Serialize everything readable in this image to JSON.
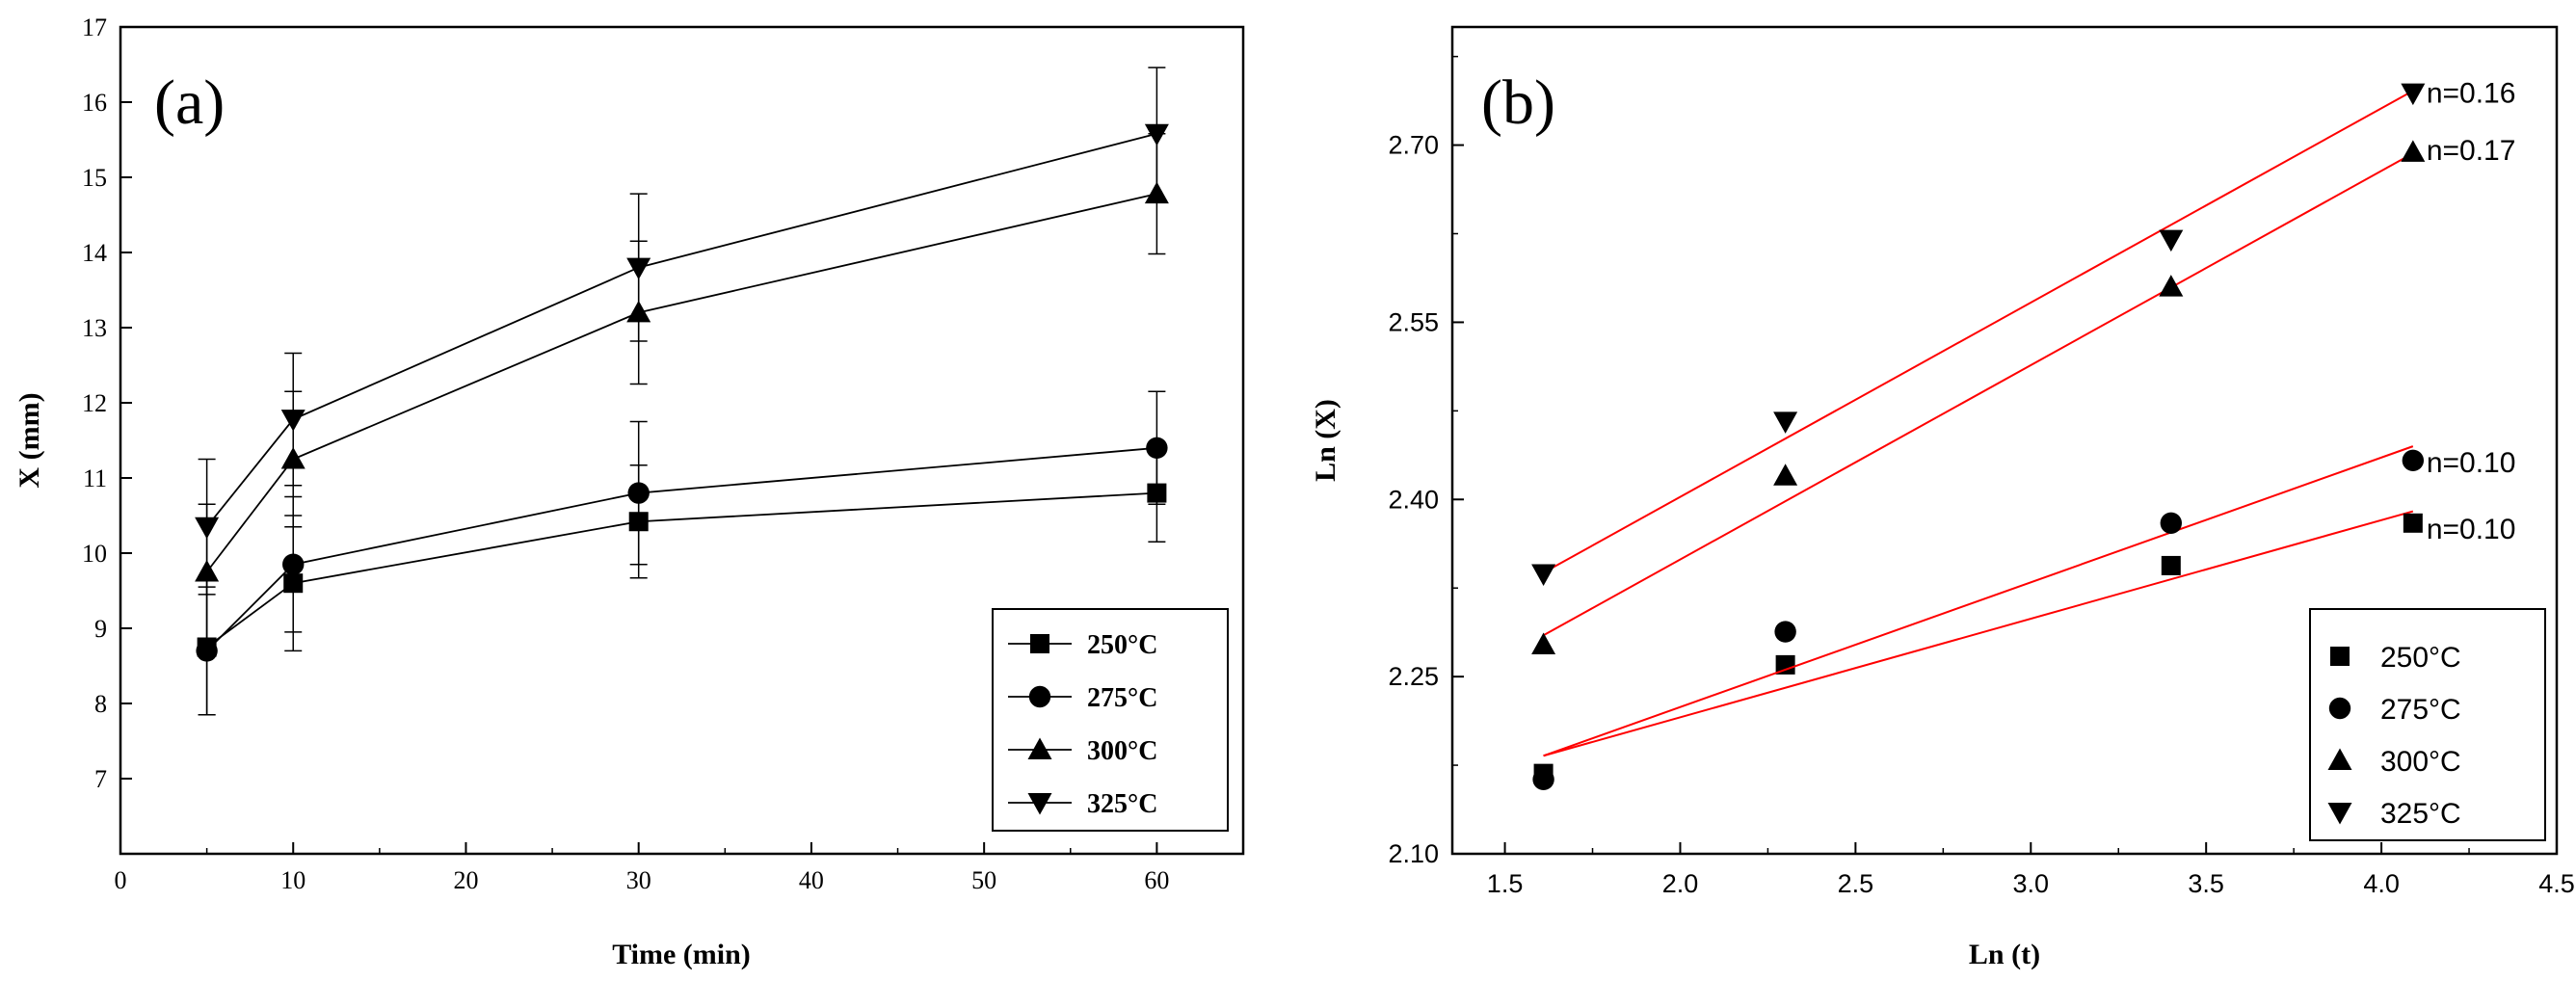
{
  "chart_data": [
    {
      "panel": "(a)",
      "type": "line",
      "xlabel": "Time (min)",
      "ylabel": "X (mm)",
      "xlim": [
        0,
        65
      ],
      "ylim": [
        6,
        17
      ],
      "xticks": [
        0,
        10,
        20,
        30,
        40,
        50,
        60
      ],
      "yticks": [
        7,
        8,
        9,
        10,
        11,
        12,
        13,
        14,
        15,
        16,
        17
      ],
      "x": [
        5,
        10,
        30,
        60
      ],
      "series": [
        {
          "name": "250°C",
          "marker": "square",
          "values": [
            8.75,
            9.6,
            10.42,
            10.8
          ],
          "errors": [
            0.9,
            0.9,
            0.75,
            0.65
          ]
        },
        {
          "name": "275°C",
          "marker": "circle",
          "values": [
            8.7,
            9.85,
            10.8,
            11.4
          ],
          "errors": [
            0.85,
            0.9,
            0.95,
            0.75
          ]
        },
        {
          "name": "300°C",
          "marker": "triangle-up",
          "values": [
            9.75,
            11.25,
            13.2,
            14.78
          ],
          "errors": [
            0.9,
            0.9,
            0.95,
            0.8
          ]
        },
        {
          "name": "325°C",
          "marker": "triangle-down",
          "values": [
            10.35,
            11.78,
            13.8,
            15.58
          ],
          "errors": [
            0.9,
            0.88,
            0.98,
            0.88
          ]
        }
      ],
      "legend": "bottom-right"
    },
    {
      "panel": "(b)",
      "type": "scatter",
      "xlabel": "Ln (t)",
      "ylabel": "Ln (X)",
      "xlim": [
        1.35,
        4.5
      ],
      "ylim": [
        2.1,
        2.8
      ],
      "xticks": [
        "1.5",
        "2.0",
        "2.5",
        "3.0",
        "3.5",
        "4.0",
        "4.5"
      ],
      "yticks": [
        "2.10",
        "2.25",
        "2.40",
        "2.55",
        "2.70"
      ],
      "x": [
        1.61,
        2.3,
        3.4,
        4.09
      ],
      "series": [
        {
          "name": "250°C",
          "marker": "square",
          "values": [
            2.168,
            2.26,
            2.344,
            2.38
          ],
          "fit": [
            2.183,
            2.39
          ],
          "n_label": "n=0.10"
        },
        {
          "name": "275°C",
          "marker": "circle",
          "values": [
            2.163,
            2.288,
            2.38,
            2.433
          ],
          "fit": [
            2.183,
            2.445
          ],
          "n_label": "n=0.10"
        },
        {
          "name": "300°C",
          "marker": "triangle-up",
          "values": [
            2.277,
            2.42,
            2.58,
            2.694
          ],
          "fit": [
            2.285,
            2.693
          ],
          "n_label": "n=0.17"
        },
        {
          "name": "325°C",
          "marker": "triangle-down",
          "values": [
            2.337,
            2.466,
            2.62,
            2.744
          ],
          "fit": [
            2.338,
            2.746
          ],
          "n_label": "n=0.16"
        }
      ],
      "fit_color": "#ff0000",
      "legend": "bottom-right"
    }
  ]
}
